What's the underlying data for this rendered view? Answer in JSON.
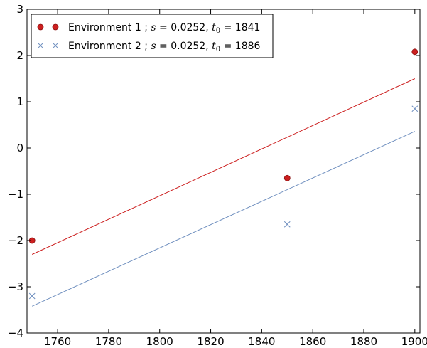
{
  "chart_data": {
    "type": "scatter",
    "title": "",
    "xlabel": "",
    "ylabel": "",
    "xlim": [
      1748,
      1902
    ],
    "ylim": [
      -4,
      3
    ],
    "xticks": [
      1760,
      1780,
      1800,
      1820,
      1840,
      1860,
      1880,
      1900
    ],
    "yticks": [
      -4,
      -3,
      -2,
      -1,
      0,
      1,
      2,
      3
    ],
    "grid": false,
    "legend_position": "top-left",
    "series": [
      {
        "name": "Environment 1",
        "s_label": "s",
        "s_value": "0.0252",
        "t0_label": "t",
        "t0_sub": "0",
        "t0_value": "1841",
        "marker": "circle",
        "color": "#cc1f1f",
        "points": [
          {
            "x": 1750,
            "y": -2.0
          },
          {
            "x": 1850,
            "y": -0.65
          },
          {
            "x": 1900,
            "y": 2.08
          }
        ],
        "fit_line": [
          {
            "x": 1750,
            "y": -2.3
          },
          {
            "x": 1900,
            "y": 1.5
          }
        ]
      },
      {
        "name": "Environment 2",
        "s_label": "s",
        "s_value": "0.0252",
        "t0_label": "t",
        "t0_sub": "0",
        "t0_value": "1886",
        "marker": "x",
        "color": "#6f8fbf",
        "points": [
          {
            "x": 1750,
            "y": -3.2
          },
          {
            "x": 1850,
            "y": -1.65
          },
          {
            "x": 1900,
            "y": 0.85
          }
        ],
        "fit_line": [
          {
            "x": 1750,
            "y": -3.42
          },
          {
            "x": 1900,
            "y": 0.36
          }
        ]
      }
    ]
  }
}
